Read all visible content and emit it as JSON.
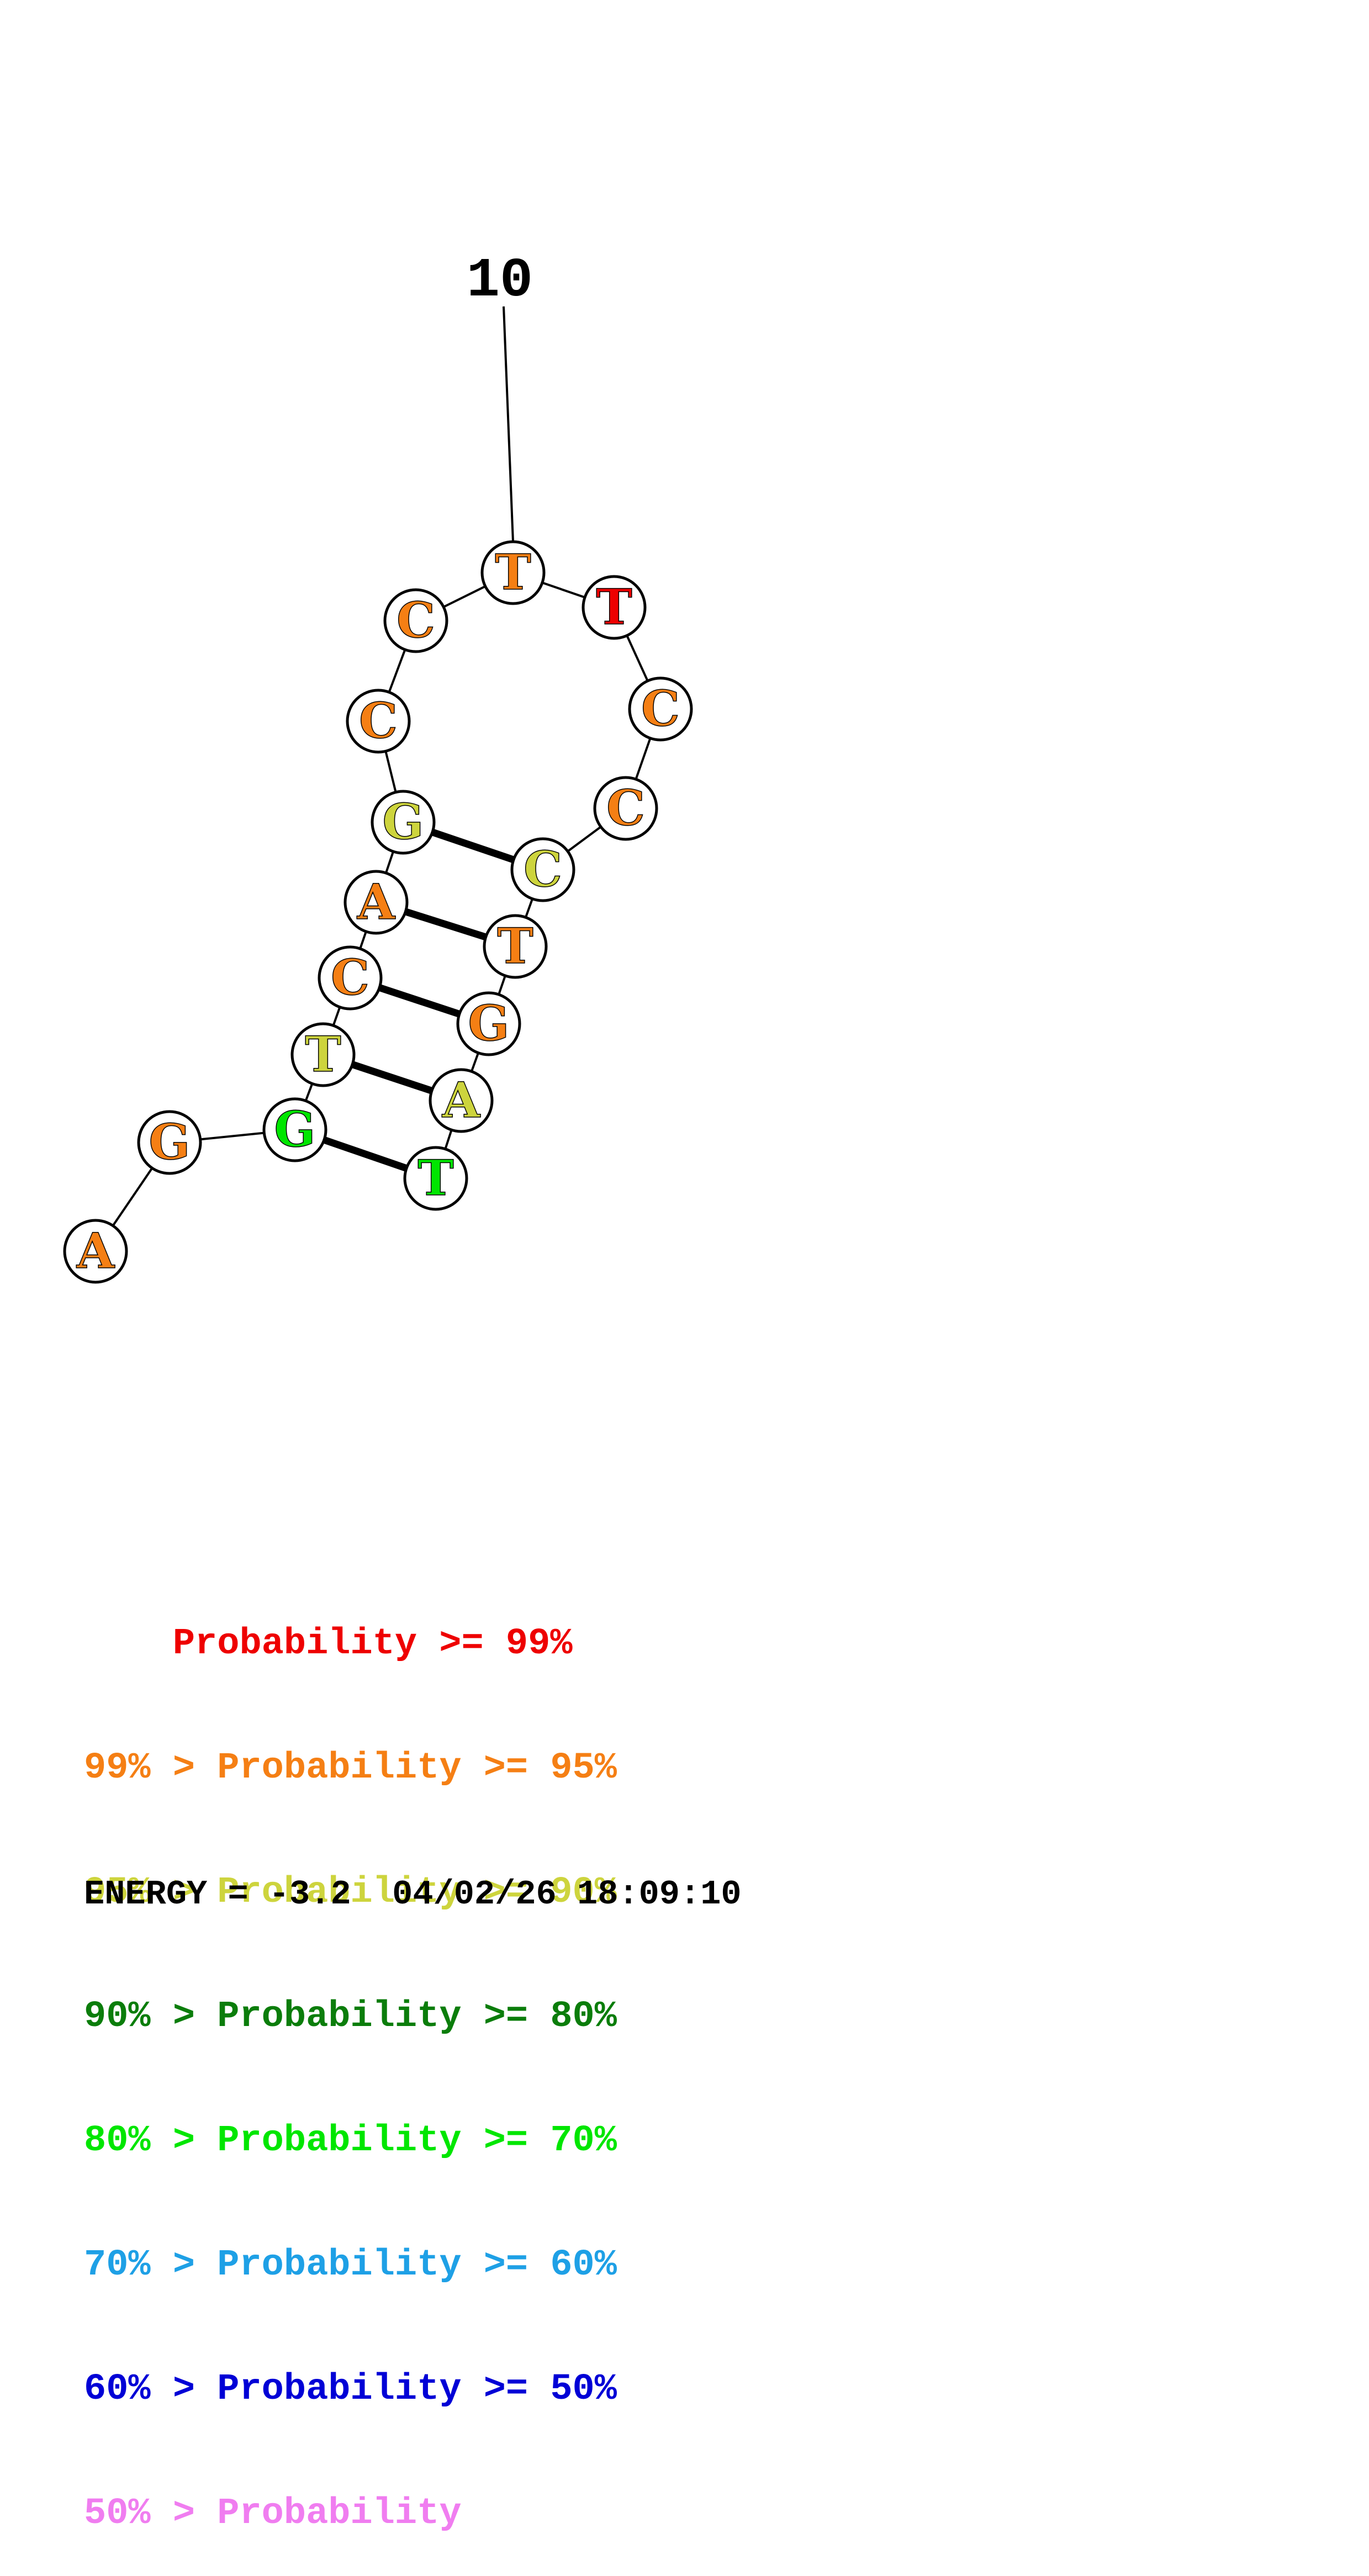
{
  "colors": {
    "p99": "#ee0000",
    "p95": "#f57f14",
    "p90": "#cdd43d",
    "p80": "#0b7d0b",
    "p70": "#00e600",
    "p60": "#1ea0e6",
    "p50": "#0000d6",
    "p0": "#f07df0"
  },
  "nucleotides": [
    {
      "index": 1,
      "base": "A",
      "color": "p95"
    },
    {
      "index": 2,
      "base": "G",
      "color": "p95"
    },
    {
      "index": 3,
      "base": "G",
      "color": "p70"
    },
    {
      "index": 4,
      "base": "T",
      "color": "p90"
    },
    {
      "index": 5,
      "base": "C",
      "color": "p95"
    },
    {
      "index": 6,
      "base": "A",
      "color": "p95"
    },
    {
      "index": 7,
      "base": "G",
      "color": "p90"
    },
    {
      "index": 8,
      "base": "C",
      "color": "p95"
    },
    {
      "index": 9,
      "base": "C",
      "color": "p95"
    },
    {
      "index": 10,
      "base": "T",
      "color": "p95"
    },
    {
      "index": 11,
      "base": "T",
      "color": "p99"
    },
    {
      "index": 12,
      "base": "C",
      "color": "p95"
    },
    {
      "index": 13,
      "base": "C",
      "color": "p95"
    },
    {
      "index": 14,
      "base": "C",
      "color": "p90"
    },
    {
      "index": 15,
      "base": "T",
      "color": "p95"
    },
    {
      "index": 16,
      "base": "G",
      "color": "p95"
    },
    {
      "index": 17,
      "base": "A",
      "color": "p90"
    },
    {
      "index": 18,
      "base": "T",
      "color": "p70"
    }
  ],
  "base_pairs": [
    [
      3,
      18
    ],
    [
      4,
      17
    ],
    [
      5,
      16
    ],
    [
      6,
      15
    ],
    [
      7,
      14
    ]
  ],
  "tick_label": {
    "text": "10",
    "nucleotide": 10
  },
  "legend": [
    {
      "prefix": "    ",
      "text": "Probability >= 99%",
      "color": "p99"
    },
    {
      "prefix": "99% > ",
      "text": "Probability >= 95%",
      "color": "p95"
    },
    {
      "prefix": "95% > ",
      "text": "Probability >= 90%",
      "color": "p90"
    },
    {
      "prefix": "90% > ",
      "text": "Probability >= 80%",
      "color": "p80"
    },
    {
      "prefix": "80% > ",
      "text": "Probability >= 70%",
      "color": "p70"
    },
    {
      "prefix": "70% > ",
      "text": "Probability >= 60%",
      "color": "p60"
    },
    {
      "prefix": "60% > ",
      "text": "Probability >= 50%",
      "color": "p50"
    },
    {
      "prefix": "50% > ",
      "text": "Probability",
      "color": "p0"
    }
  ],
  "energy": {
    "label": "ENERGY = -3.2",
    "date": "04/02/26",
    "time": "18:09:10"
  }
}
